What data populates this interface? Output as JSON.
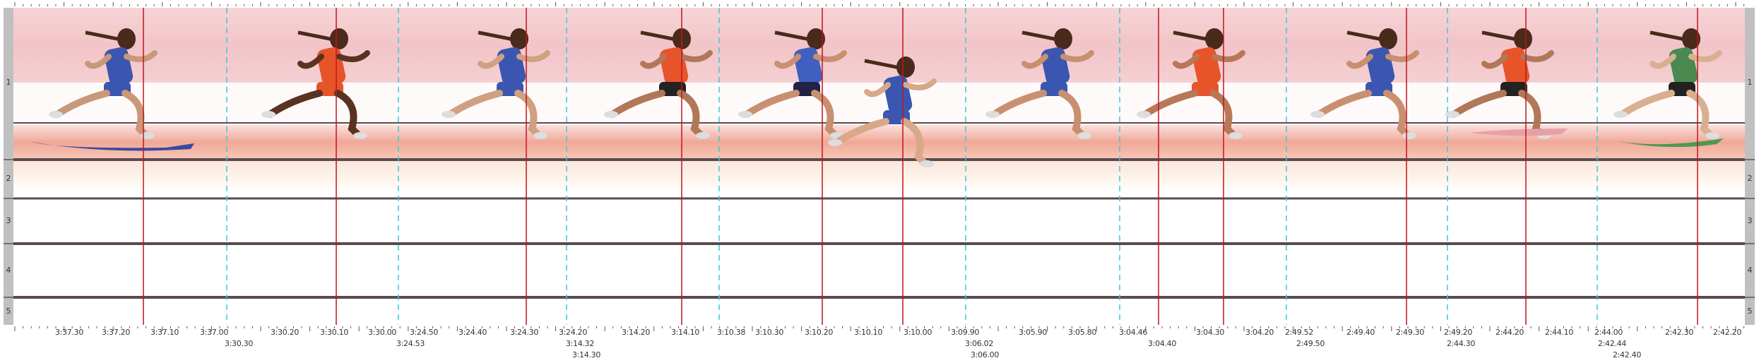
{
  "lanes": [
    "1",
    "2",
    "3",
    "4",
    "5"
  ],
  "time_labels": {
    "row1": [
      "3:37.30",
      "3:37.20",
      "3:37.10",
      "3:37.00",
      "3:30.20",
      "3:30.10",
      "3:30.00",
      "3:24.50",
      "3:24.40",
      "3:24.30",
      "3:24.20",
      "3:14.20",
      "3:14.10",
      "3:10.38",
      "3:10.30",
      "3:10.20",
      "3:10.10",
      "3:10.00",
      "3:09.90",
      "3:05.90",
      "3:05.80",
      "3:04.46",
      "3:04.30",
      "3:04.20",
      "2:49.52",
      "2:49.40",
      "2:49.30",
      "2:49.20",
      "2:44.20",
      "2:44.10",
      "2:44.00",
      "2:42.30",
      "2:42.20"
    ],
    "row2": [
      "3:30.30",
      "3:24.53",
      "3:14.32",
      "3:06.02",
      "3:04.40",
      "2:49.50",
      "2:44.30",
      "2:42.44"
    ],
    "row3": [
      "3:14.30",
      "3:06.00",
      "2:42.40"
    ]
  },
  "colors": {
    "finish_line_red": "#c0141e",
    "split_line_cyan": "#3cc8dc",
    "lane_line": "#5a4a4e",
    "gutter_gray": "#c0c0c0",
    "backdrop_pink": "#f2c4c8",
    "track_shadow": "#f0a898"
  },
  "runners": [
    {
      "jersey": "#3a56b0",
      "shorts": "#3a56b0",
      "skin": "#c89878"
    },
    {
      "jersey": "#e8542a",
      "shorts": "#e8542a",
      "skin": "#5a3220"
    },
    {
      "jersey": "#3a56b0",
      "shorts": "#3a56b0",
      "skin": "#d0a080"
    },
    {
      "jersey": "#e8542a",
      "shorts": "#222222",
      "skin": "#b07858"
    },
    {
      "jersey": "#4060c0",
      "shorts": "#222244",
      "skin": "#c89070"
    },
    {
      "jersey": "#3a56b0",
      "shorts": "#3a56b0",
      "skin": "#d8a888"
    },
    {
      "jersey": "#3a56b0",
      "shorts": "#3a56b0",
      "skin": "#c89070"
    },
    {
      "jersey": "#e8542a",
      "shorts": "#e8542a",
      "skin": "#b87858"
    },
    {
      "jersey": "#3a56b0",
      "shorts": "#3a56b0",
      "skin": "#c89070"
    },
    {
      "jersey": "#e8542a",
      "shorts": "#222222",
      "skin": "#b07858"
    },
    {
      "jersey": "#4a8a50",
      "shorts": "#222222",
      "skin": "#d8b090"
    }
  ]
}
